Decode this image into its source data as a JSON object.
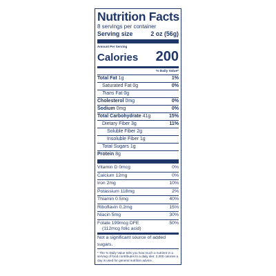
{
  "title": "Nutrition Facts",
  "servings_per_container": "8 servings per container",
  "serving_size_label": "Serving size",
  "serving_size_value": "2 oz (56g)",
  "amount_per_serving": "Amount Per Serving",
  "calories_label": "Calories",
  "calories_value": "200",
  "daily_value_header": "% Daily Value*",
  "nutrients": [
    {
      "name": "Total Fat",
      "amount": "1g",
      "dv": "1%"
    },
    {
      "name": "Saturated Fat",
      "amount": "0g",
      "dv": "0%"
    },
    {
      "name": "Trans",
      "suffix": "Fat 0g"
    },
    {
      "name": "Cholesterol",
      "amount": "0mg",
      "dv": "0%"
    },
    {
      "name": "Sodium",
      "amount": "0mg",
      "dv": "0%"
    },
    {
      "name": "Total Carbohydrate",
      "amount": "41g",
      "dv": "15%"
    },
    {
      "name": "Dietary Fiber",
      "amount": "3g",
      "dv": "11%"
    },
    {
      "label": "Soluble Fiber 2g"
    },
    {
      "label": "Insoluble Fiber 1g"
    },
    {
      "label": "Total Sugars 1g"
    },
    {
      "name": "Protein",
      "amount": "8g"
    }
  ],
  "vitamins": [
    {
      "label": "Vitamin D 0mcg",
      "dv": "0%"
    },
    {
      "label": "Calcium 12mg",
      "dv": "0%"
    },
    {
      "label": "Iron 2mg",
      "dv": "10%"
    },
    {
      "label": "Potassium 118mg",
      "dv": "2%"
    },
    {
      "label": "Thiamin 0.5mg",
      "dv": "40%"
    },
    {
      "label": "Riboflavin 0.2mg",
      "dv": "15%"
    },
    {
      "label": "Niacin 5mg",
      "dv": "30%"
    },
    {
      "label": "Folate 199mcg DFE",
      "sub": "(112mcg folic acid)",
      "dv": "50%"
    }
  ],
  "not_significant": "Not a significant source of added sugars.",
  "footnote": "* The % Daily Value tells you how much a nutrient in a serving of food contributes to a daily diet. 2,000 calories a day is used for general nutrition advice.",
  "colors": {
    "ink": "#1f3668",
    "background": "#ffffff"
  }
}
